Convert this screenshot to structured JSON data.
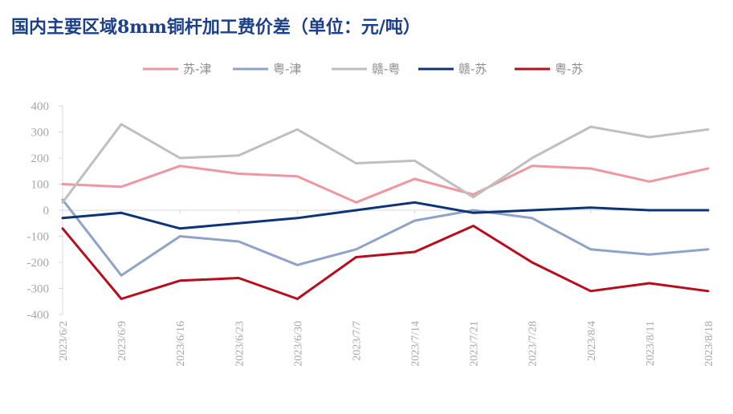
{
  "page": {
    "title": "国内主要区域8mm铜杆加工费价差（单位：元/吨）"
  },
  "chart_data": {
    "type": "line",
    "title": "国内主要区域8mm铜杆加工费价差（单位：元/吨）",
    "xlabel": "",
    "ylabel": "",
    "ylim": [
      -400,
      400
    ],
    "yticks": [
      400,
      300,
      200,
      100,
      0,
      -100,
      -200,
      -300,
      -400
    ],
    "grid": false,
    "legend_position": "top-center",
    "x": [
      "2023/6/2",
      "2023/6/9",
      "2023/6/16",
      "2023/6/23",
      "2023/6/30",
      "2023/7/7",
      "2023/7/14",
      "2023/7/21",
      "2023/7/28",
      "2023/8/4",
      "2023/8/11",
      "2023/8/18"
    ],
    "series": [
      {
        "name": "苏-津",
        "color": "#ef97a0",
        "values": [
          100,
          90,
          170,
          140,
          130,
          30,
          120,
          60,
          170,
          160,
          110,
          160
        ]
      },
      {
        "name": "粤-津",
        "color": "#8fa3c9",
        "values": [
          40,
          -250,
          -100,
          -120,
          -210,
          -150,
          -40,
          0,
          -30,
          -150,
          -170,
          -150
        ]
      },
      {
        "name": "赣-粤",
        "color": "#bfbfbf",
        "values": [
          30,
          330,
          200,
          210,
          310,
          180,
          190,
          50,
          200,
          320,
          280,
          310
        ]
      },
      {
        "name": "赣-苏",
        "color": "#0e3478",
        "values": [
          -30,
          -10,
          -70,
          -50,
          -30,
          0,
          30,
          -10,
          0,
          10,
          0,
          0
        ]
      },
      {
        "name": "粤-苏",
        "color": "#b80d1c",
        "values": [
          -70,
          -340,
          -270,
          -260,
          -340,
          -180,
          -160,
          -60,
          -200,
          -310,
          -280,
          -310
        ]
      }
    ]
  }
}
